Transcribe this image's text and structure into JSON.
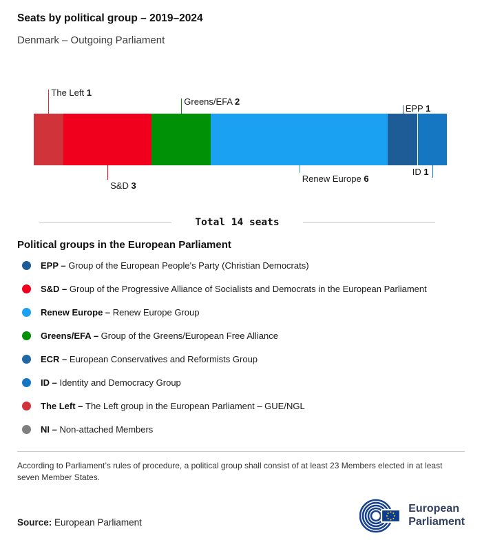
{
  "header": {
    "title": "Seats by political group – 2019–2024",
    "subtitle": "Denmark – Outgoing Parliament"
  },
  "chart_data": {
    "type": "bar",
    "variant": "horizontal-stacked-seats",
    "title": "Seats by political group – 2019–2024",
    "subtitle": "Denmark – Outgoing Parliament",
    "total_seats": 14,
    "total_label": "Total 14 seats",
    "segments": [
      {
        "group": "The Left",
        "seats": 1,
        "color": "#d03339",
        "callout": {
          "side": "above",
          "tick": 35,
          "align": "right"
        }
      },
      {
        "group": "S&D",
        "seats": 3,
        "color": "#f0001c",
        "callout": {
          "side": "below",
          "tick": 21,
          "align": "right"
        }
      },
      {
        "group": "Greens/EFA",
        "seats": 2,
        "color": "#009107",
        "callout": {
          "side": "above",
          "tick": 22,
          "align": "right"
        }
      },
      {
        "group": "Renew Europe",
        "seats": 6,
        "color": "#1ba1f2",
        "callout": {
          "side": "below",
          "tick": 11,
          "align": "right"
        }
      },
      {
        "group": "EPP",
        "seats": 1,
        "color": "#1d5c96",
        "callout": {
          "side": "above",
          "tick": 12,
          "align": "right"
        }
      },
      {
        "group": "ID",
        "seats": 1,
        "color": "#1577c2",
        "separator_before": true,
        "callout": {
          "side": "below",
          "tick": 18,
          "align": "left",
          "beside_bar": true
        }
      }
    ]
  },
  "legend": {
    "heading": "Political groups in the European Parliament",
    "items": [
      {
        "abbr": "EPP –",
        "desc": "Group of the European People's Party (Christian Democrats)",
        "color": "#1d5c96"
      },
      {
        "abbr": "S&D –",
        "desc": "Group of the Progressive Alliance of Socialists and Democrats in the European Parliament",
        "color": "#f0001c"
      },
      {
        "abbr": "Renew Europe –",
        "desc": "Renew Europe Group",
        "color": "#1ba1f2"
      },
      {
        "abbr": "Greens/EFA –",
        "desc": "Group of the Greens/European Free Alliance",
        "color": "#009107"
      },
      {
        "abbr": "ECR –",
        "desc": "European Conservatives and Reformists Group",
        "color": "#2268a4"
      },
      {
        "abbr": "ID –",
        "desc": "Identity and Democracy Group",
        "color": "#1577c2"
      },
      {
        "abbr": "The Left –",
        "desc": "The Left group in the European Parliament – GUE/NGL",
        "color": "#d03339"
      },
      {
        "abbr": "NI –",
        "desc": "Non-attached Members",
        "color": "#7f7f7f"
      }
    ]
  },
  "footnote": "According to Parliament’s rules of procedure, a political group shall consist of at least 23 Members elected in at least seven Member States.",
  "source": {
    "label": "Source:",
    "value": "European Parliament"
  },
  "logo": {
    "name": "European Parliament",
    "line1": "European",
    "line2": "Parliament",
    "color": "#17418e"
  }
}
